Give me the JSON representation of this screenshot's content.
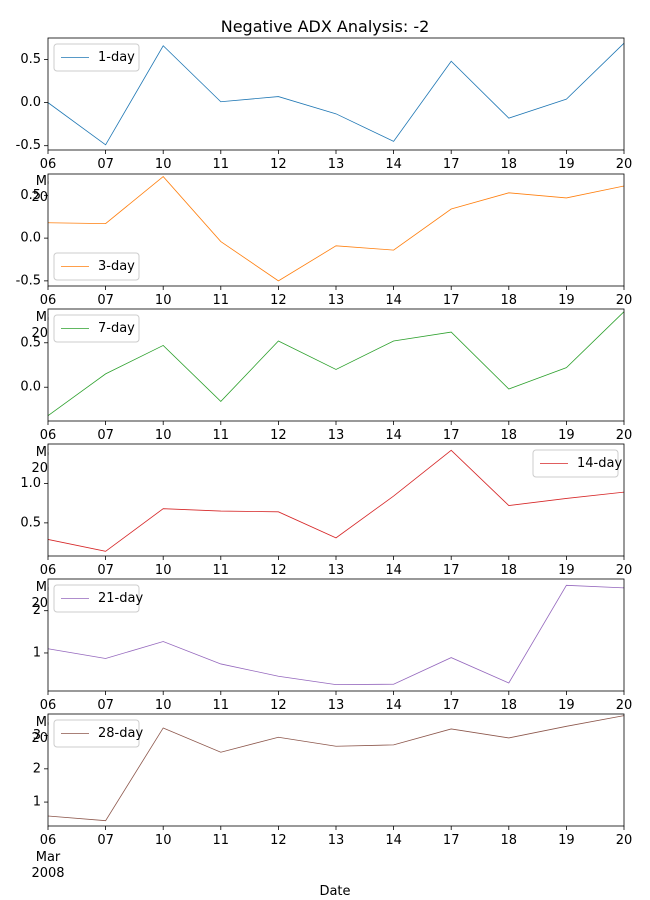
{
  "chart_data": {
    "type": "line",
    "title": "Negative ADX Analysis: -2",
    "xlabel": "Date",
    "x": [
      "2008-03-06",
      "2008-03-07",
      "2008-03-10",
      "2008-03-11",
      "2008-03-12",
      "2008-03-13",
      "2008-03-14",
      "2008-03-17",
      "2008-03-18",
      "2008-03-19",
      "2008-03-20"
    ],
    "x_tick_labels": [
      "06",
      "07",
      "10",
      "11",
      "12",
      "13",
      "14",
      "17",
      "18",
      "19",
      "20"
    ],
    "x_month_label": "Mar",
    "x_year_label": "2008",
    "panels": [
      {
        "name": "1-day",
        "color": "#1f77b4",
        "legend": "top-left",
        "ylim": [
          -0.55,
          0.75
        ],
        "yticks": [
          -0.5,
          0.0,
          0.5
        ],
        "ytick_labels": [
          "-0.5",
          "0.0",
          "0.5"
        ],
        "values": [
          0.0,
          -0.49,
          0.66,
          0.01,
          0.07,
          -0.13,
          -0.45,
          0.48,
          -0.18,
          0.04,
          0.69
        ]
      },
      {
        "name": "3-day",
        "color": "#ff7f0e",
        "legend": "bottom-left",
        "ylim": [
          -0.56,
          0.75
        ],
        "yticks": [
          -0.5,
          0.0,
          0.5
        ],
        "ytick_labels": [
          "-0.5",
          "0.0",
          "0.5"
        ],
        "values": [
          0.18,
          0.17,
          0.72,
          -0.04,
          -0.5,
          -0.09,
          -0.14,
          0.34,
          0.53,
          0.47,
          0.61
        ]
      },
      {
        "name": "7-day",
        "color": "#2ca02c",
        "legend": "top-left",
        "ylim": [
          -0.38,
          0.88
        ],
        "yticks": [
          0.0,
          0.5
        ],
        "ytick_labels": [
          "0.0",
          "0.5"
        ],
        "values": [
          -0.32,
          0.15,
          0.47,
          -0.16,
          0.52,
          0.2,
          0.52,
          0.62,
          -0.02,
          0.22,
          0.85
        ]
      },
      {
        "name": "14-day",
        "color": "#d62728",
        "legend": "top-right",
        "ylim": [
          0.08,
          1.5
        ],
        "yticks": [
          0.5,
          1.0
        ],
        "ytick_labels": [
          "0.5",
          "1.0"
        ],
        "values": [
          0.29,
          0.14,
          0.68,
          0.65,
          0.64,
          0.31,
          0.84,
          1.42,
          0.72,
          0.81,
          0.89
        ]
      },
      {
        "name": "21-day",
        "color": "#9467bd",
        "legend": "top-left",
        "ylim": [
          0.1,
          2.75
        ],
        "yticks": [
          1,
          2
        ],
        "ytick_labels": [
          "1",
          "2"
        ],
        "values": [
          1.1,
          0.87,
          1.27,
          0.74,
          0.45,
          0.25,
          0.26,
          0.89,
          0.29,
          2.6,
          2.54
        ]
      },
      {
        "name": "28-day",
        "color": "#8c564b",
        "legend": "top-left",
        "ylim": [
          0.28,
          3.65
        ],
        "yticks": [
          1,
          2,
          3
        ],
        "ytick_labels": [
          "1",
          "2",
          "3"
        ],
        "values": [
          0.58,
          0.44,
          3.23,
          2.5,
          2.95,
          2.68,
          2.72,
          3.2,
          2.93,
          3.28,
          3.6
        ]
      }
    ]
  }
}
